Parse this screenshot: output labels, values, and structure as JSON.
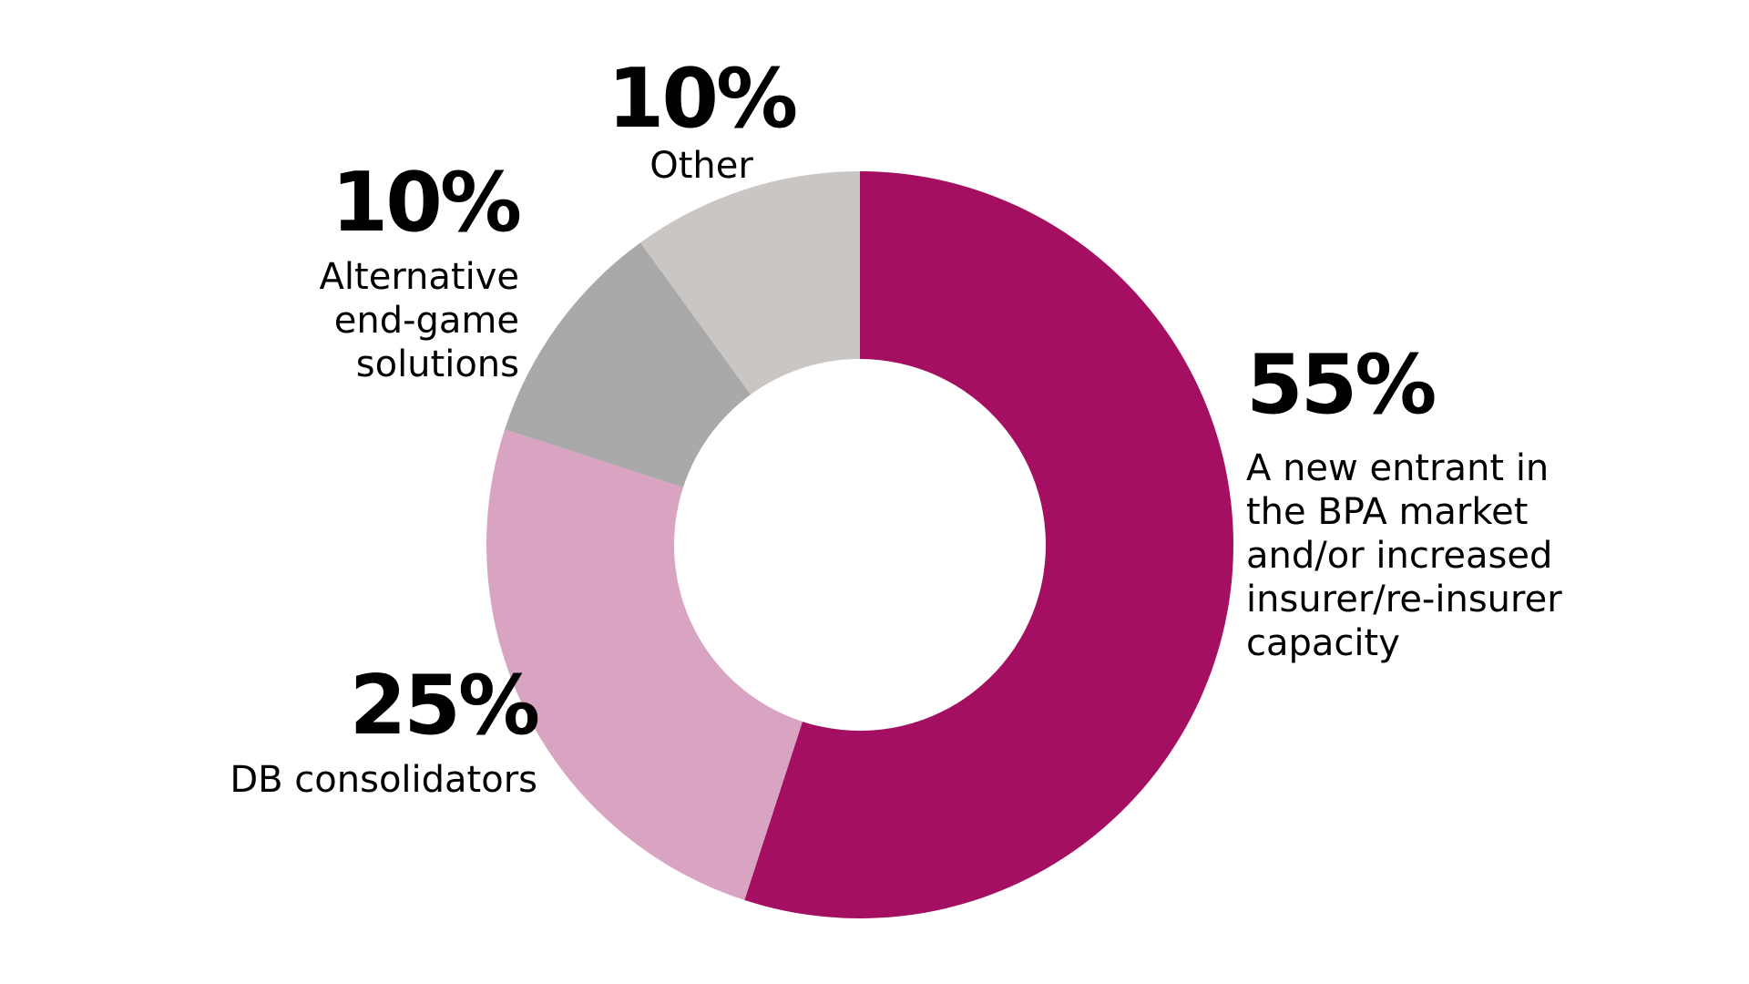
{
  "chart_data": {
    "type": "pie",
    "donut": true,
    "slices": [
      {
        "value": 55,
        "percent_label": "55%",
        "label": "A new entrant in the BPA market and/or increased insurer/re-insurer capacity",
        "label_lines": [
          "A new entrant in",
          "the BPA market",
          "and/or increased",
          "insurer/re-insurer",
          "capacity"
        ],
        "color": "#a50f62"
      },
      {
        "value": 25,
        "percent_label": "25%",
        "label": "DB consolidators",
        "label_lines": [
          "DB consolidators"
        ],
        "color": "#d9a4c2"
      },
      {
        "value": 10,
        "percent_label": "10%",
        "label": "Alternative end-game solutions",
        "label_lines": [
          "Alternative",
          "end-game",
          "solutions"
        ],
        "color": "#a9a9a9"
      },
      {
        "value": 10,
        "percent_label": "10%",
        "label": "Other",
        "label_lines": [
          "Other"
        ],
        "color": "#cac6c4"
      }
    ],
    "start": "12 o'clock",
    "direction": "clockwise",
    "legend": "none"
  }
}
